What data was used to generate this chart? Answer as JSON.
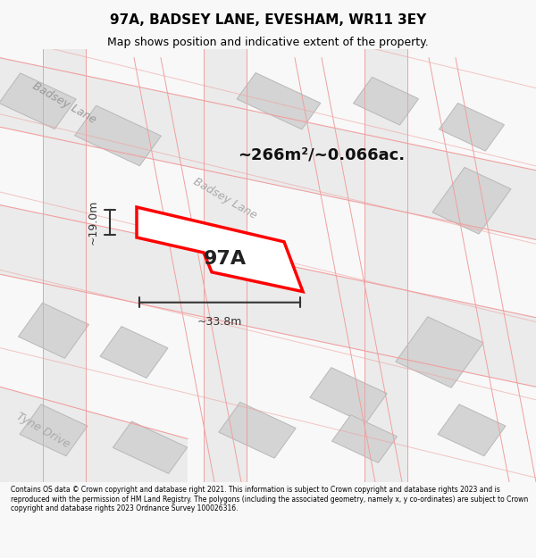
{
  "title": "97A, BADSEY LANE, EVESHAM, WR11 3EY",
  "subtitle": "Map shows position and indicative extent of the property.",
  "footer": "Contains OS data © Crown copyright and database right 2021. This information is subject to Crown copyright and database rights 2023 and is reproduced with the permission of HM Land Registry. The polygons (including the associated geometry, namely x, y co-ordinates) are subject to Crown copyright and database rights 2023 Ordnance Survey 100026316.",
  "area_label": "~266m²/~0.066ac.",
  "property_label": "97A",
  "dim_width": "~33.8m",
  "dim_height": "~19.0m",
  "street_label1": "Badsey Lane",
  "street_label2": "Badsey Lane",
  "street_label3": "Tyne Drive",
  "bg_color": "#f8f8f8",
  "map_bg": "#ffffff",
  "road_fill": "#e8e8e8",
  "building_fill": "#d8d8d8",
  "building_stroke": "#c0c0c0",
  "road_stroke": "#f0a0a0",
  "property_fill": "#ffffff",
  "property_stroke": "#ff0000",
  "dim_color": "#333333",
  "title_color": "#000000",
  "footer_color": "#000000"
}
